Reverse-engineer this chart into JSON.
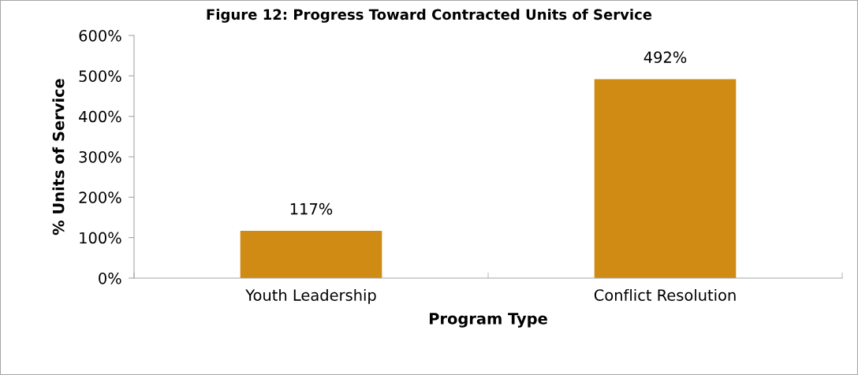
{
  "chart_data": {
    "type": "bar",
    "title": "Figure 12: Progress Toward Contracted Units of Service",
    "categories": [
      "Youth Leadership",
      "Conflict Resolution"
    ],
    "values": [
      117,
      492
    ],
    "value_labels": [
      "117%",
      "492%"
    ],
    "color": "#d08b14",
    "xlabel": "Program Type",
    "ylabel": "% Units of Service",
    "ylim": [
      0,
      600
    ],
    "yticks": [
      {
        "value": 0,
        "label": "0%"
      },
      {
        "value": 100,
        "label": "100%"
      },
      {
        "value": 200,
        "label": "200%"
      },
      {
        "value": 300,
        "label": "300%"
      },
      {
        "value": 400,
        "label": "400%"
      },
      {
        "value": 500,
        "label": "500%"
      },
      {
        "value": 600,
        "label": "600%"
      }
    ],
    "grid": false,
    "legend": false
  }
}
